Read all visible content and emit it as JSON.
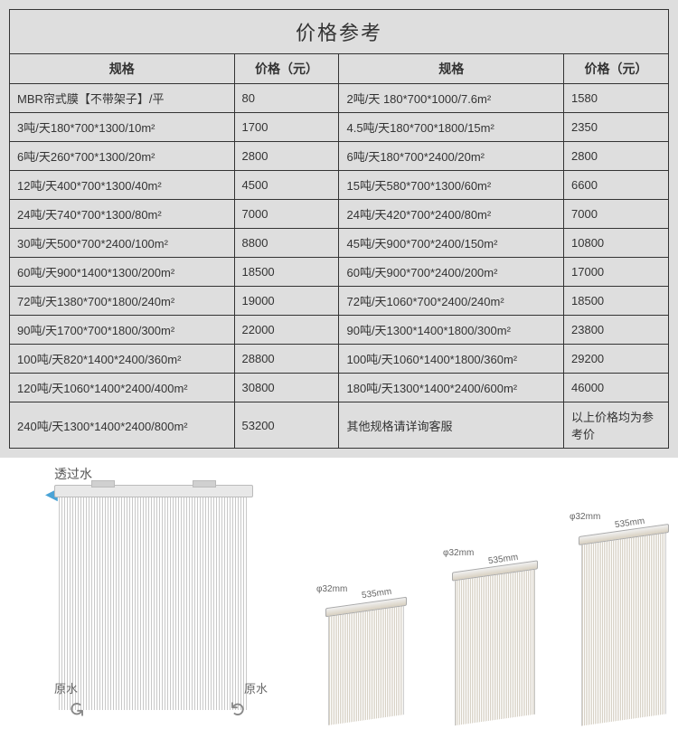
{
  "title": "价格参考",
  "headers": {
    "spec": "规格",
    "price": "价格（元）"
  },
  "rows": [
    {
      "s1": "MBR帘式膜【不带架子】/平",
      "p1": "80",
      "s2": "2吨/天 180*700*1000/7.6m²",
      "p2": "1580"
    },
    {
      "s1": "3吨/天180*700*1300/10m²",
      "p1": "1700",
      "s2": "4.5吨/天180*700*1800/15m²",
      "p2": "2350"
    },
    {
      "s1": "6吨/天260*700*1300/20m²",
      "p1": "2800",
      "s2": "6吨/天180*700*2400/20m²",
      "p2": "2800"
    },
    {
      "s1": "12吨/天400*700*1300/40m²",
      "p1": "4500",
      "s2": "15吨/天580*700*1300/60m²",
      "p2": "6600"
    },
    {
      "s1": "24吨/天740*700*1300/80m²",
      "p1": "7000",
      "s2": "24吨/天420*700*2400/80m²",
      "p2": "7000"
    },
    {
      "s1": "30吨/天500*700*2400/100m²",
      "p1": "8800",
      "s2": "45吨/天900*700*2400/150m²",
      "p2": "10800"
    },
    {
      "s1": "60吨/天900*1400*1300/200m²",
      "p1": "18500",
      "s2": "60吨/天900*700*2400/200m²",
      "p2": "17000"
    },
    {
      "s1": "72吨/天1380*700*1800/240m²",
      "p1": "19000",
      "s2": "72吨/天1060*700*2400/240m²",
      "p2": "18500"
    },
    {
      "s1": "90吨/天1700*700*1800/300m²",
      "p1": "22000",
      "s2": "90吨/天1300*1400*1800/300m²",
      "p2": "23800"
    },
    {
      "s1": "100吨/天820*1400*2400/360m²",
      "p1": "28800",
      "s2": "100吨/天1060*1400*1800/360m²",
      "p2": "29200"
    },
    {
      "s1": "120吨/天1060*1400*2400/400m²",
      "p1": "30800",
      "s2": "180吨/天1300*1400*2400/600m²",
      "p2": "46000"
    },
    {
      "s1": "240吨/天1300*1400*2400/800m²",
      "p1": "53200",
      "s2": "其他规格请详询客服",
      "p2": "以上价格均为参考价"
    }
  ],
  "diagram": {
    "permeate_label": "透过水",
    "raw_water_label": "原水",
    "phi_label": "φ32mm",
    "width_label": "535mm"
  }
}
